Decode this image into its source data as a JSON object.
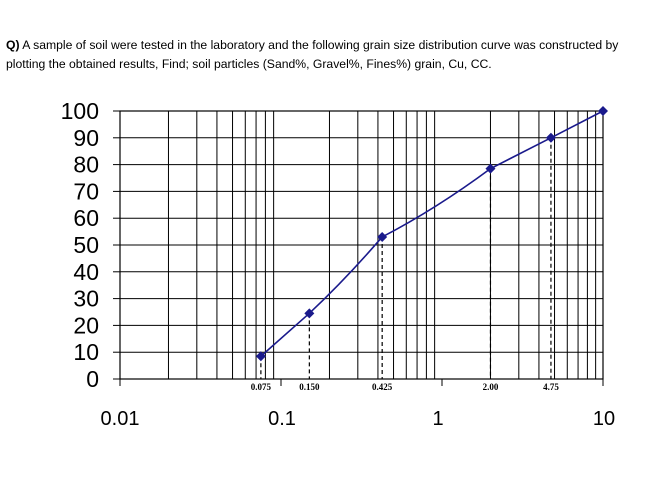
{
  "question": {
    "prefix": "Q)",
    "text": " A sample of soil were tested in the laboratory and the following grain size distribution curve was constructed by plotting the obtained results, Find; soil particles (Sand%, Gravel%, Fines%) grain, Cu, CC."
  },
  "chart_data": {
    "type": "line",
    "x_scale": "log",
    "xlim": [
      0.01,
      10
    ],
    "ylim": [
      0,
      100
    ],
    "x_ticks": [
      "0.01",
      "0.1",
      "1",
      "10"
    ],
    "y_ticks": [
      "100",
      "90",
      "80",
      "70",
      "60",
      "50",
      "40",
      "30",
      "20",
      "10",
      "0"
    ],
    "grid": true,
    "series_color": "#1a1a8c",
    "points": [
      {
        "x": 0.075,
        "y": 8.5
      },
      {
        "x": 0.15,
        "y": 24.5
      },
      {
        "x": 0.425,
        "y": 53
      },
      {
        "x": 2.0,
        "y": 78.5
      },
      {
        "x": 4.75,
        "y": 90
      },
      {
        "x": 10,
        "y": 100
      }
    ],
    "dashed_markers": [
      {
        "x": 0.075,
        "y": 8.5,
        "label": "0.075"
      },
      {
        "x": 0.15,
        "y": 24.5,
        "label": "0.150"
      },
      {
        "x": 0.425,
        "y": 53,
        "label": "0.425"
      },
      {
        "x": 2.0,
        "y": 78.5,
        "label": "2.00"
      },
      {
        "x": 4.75,
        "y": 90,
        "label": "4.75"
      }
    ]
  }
}
